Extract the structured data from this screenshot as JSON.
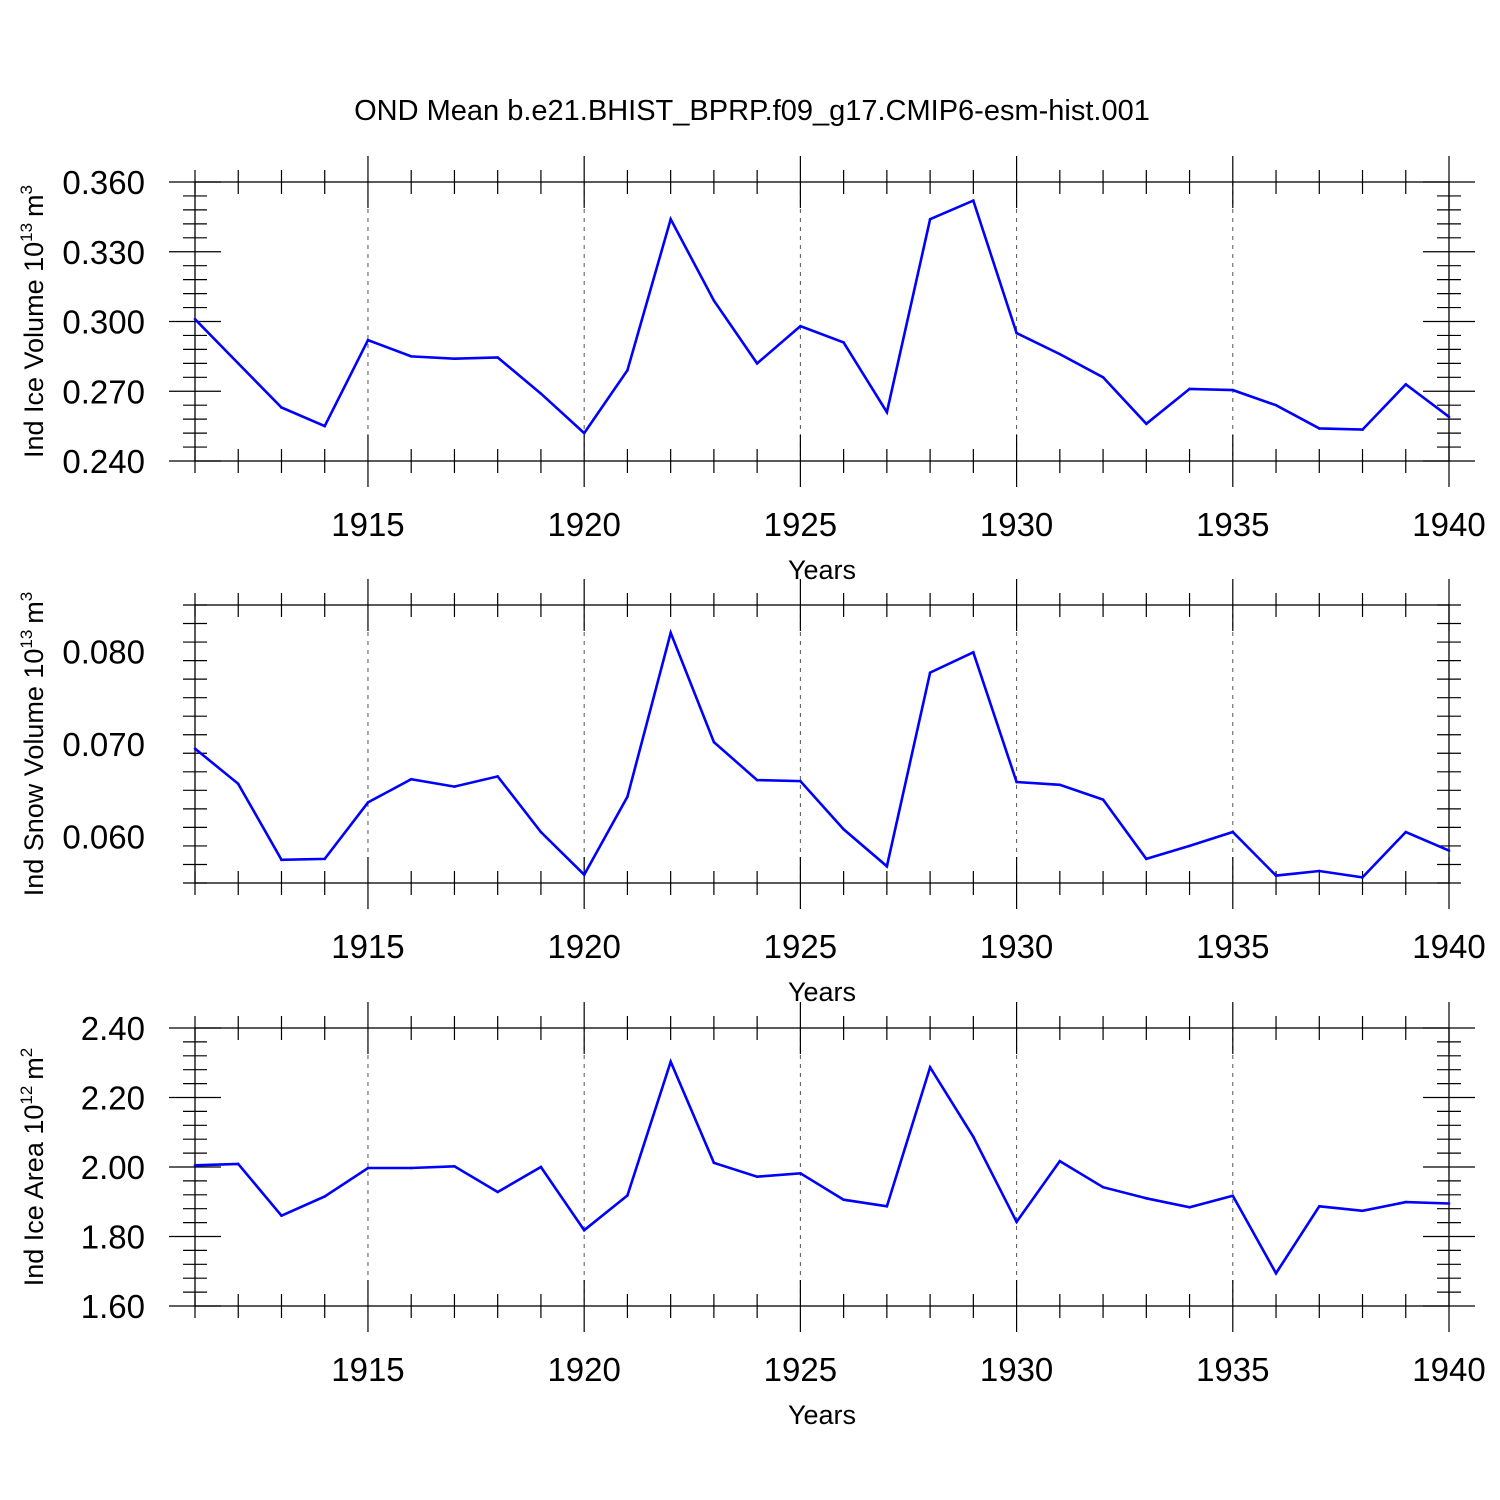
{
  "title": "OND Mean b.e21.BHIST_BPRP.f09_g17.CMIP6-esm-hist.001",
  "chart_data": [
    {
      "type": "line",
      "name": "ice-volume",
      "ylabel": "Ind Ice Volume",
      "ylabel_exp_base": "10",
      "ylabel_exp": "13",
      "ylabel_unit": "m",
      "ylabel_unit_exp": "3",
      "xlabel": "Years",
      "xlim": [
        1911,
        1940
      ],
      "ylim": [
        0.24,
        0.36
      ],
      "yticks": [
        "0.240",
        "0.270",
        "0.300",
        "0.330",
        "0.360"
      ],
      "xticks": [
        "1915",
        "1920",
        "1925",
        "1930",
        "1935",
        "1940"
      ],
      "grid": "vertical dashed at major x ticks",
      "series": [
        {
          "name": "Ind Ice Volume",
          "color": "#0000ff",
          "x": [
            1911,
            1912,
            1913,
            1914,
            1915,
            1916,
            1917,
            1918,
            1919,
            1920,
            1921,
            1922,
            1923,
            1924,
            1925,
            1926,
            1927,
            1928,
            1929,
            1930,
            1931,
            1932,
            1933,
            1934,
            1935,
            1936,
            1937,
            1938,
            1939,
            1940
          ],
          "values": [
            0.301,
            0.282,
            0.263,
            0.255,
            0.292,
            0.285,
            0.284,
            0.2845,
            0.269,
            0.252,
            0.279,
            0.344,
            0.309,
            0.282,
            0.298,
            0.291,
            0.261,
            0.344,
            0.352,
            0.295,
            0.286,
            0.276,
            0.256,
            0.271,
            0.2705,
            0.264,
            0.254,
            0.2535,
            0.273,
            0.259
          ]
        }
      ]
    },
    {
      "type": "line",
      "name": "snow-volume",
      "ylabel": "Ind Snow Volume",
      "ylabel_exp_base": "10",
      "ylabel_exp": "13",
      "ylabel_unit": "m",
      "ylabel_unit_exp": "3",
      "xlabel": "Years",
      "xlim": [
        1911,
        1940
      ],
      "ylim": [
        0.055,
        0.085
      ],
      "yticks": [
        "0.060",
        "0.070",
        "0.080"
      ],
      "xticks": [
        "1915",
        "1920",
        "1925",
        "1930",
        "1935",
        "1940"
      ],
      "grid": "vertical dashed at major x ticks",
      "series": [
        {
          "name": "Ind Snow Volume",
          "color": "#0000ff",
          "x": [
            1911,
            1912,
            1913,
            1914,
            1915,
            1916,
            1917,
            1918,
            1919,
            1920,
            1921,
            1922,
            1923,
            1924,
            1925,
            1926,
            1927,
            1928,
            1929,
            1930,
            1931,
            1932,
            1933,
            1934,
            1935,
            1936,
            1937,
            1938,
            1939,
            1940
          ],
          "values": [
            0.0695,
            0.0657,
            0.0575,
            0.0576,
            0.0637,
            0.0662,
            0.0654,
            0.0665,
            0.0605,
            0.0559,
            0.0643,
            0.082,
            0.0702,
            0.0661,
            0.066,
            0.0608,
            0.0568,
            0.0777,
            0.0799,
            0.0659,
            0.0656,
            0.064,
            0.0576,
            0.059,
            0.0605,
            0.0558,
            0.0563,
            0.0556,
            0.0605,
            0.0585
          ]
        }
      ]
    },
    {
      "type": "line",
      "name": "ice-area",
      "ylabel": "Ind Ice Area",
      "ylabel_exp_base": "10",
      "ylabel_exp": "12",
      "ylabel_unit": "m",
      "ylabel_unit_exp": "2",
      "xlabel": "Years",
      "xlim": [
        1911,
        1940
      ],
      "ylim": [
        1.6,
        2.4
      ],
      "yticks": [
        "1.60",
        "1.80",
        "2.00",
        "2.20",
        "2.40"
      ],
      "xticks": [
        "1915",
        "1920",
        "1925",
        "1930",
        "1935",
        "1940"
      ],
      "grid": "vertical dashed at major x ticks",
      "series": [
        {
          "name": "Ind Ice Area",
          "color": "#0000ff",
          "x": [
            1911,
            1912,
            1913,
            1914,
            1915,
            1916,
            1917,
            1918,
            1919,
            1920,
            1921,
            1922,
            1923,
            1924,
            1925,
            1926,
            1927,
            1928,
            1929,
            1930,
            1931,
            1932,
            1933,
            1934,
            1935,
            1936,
            1937,
            1938,
            1939,
            1940
          ],
          "values": [
            2.005,
            2.009,
            1.86,
            1.915,
            1.997,
            1.997,
            2.002,
            1.928,
            2.0,
            1.818,
            1.918,
            2.303,
            2.012,
            1.972,
            1.982,
            1.906,
            1.887,
            2.287,
            2.087,
            1.842,
            2.017,
            1.942,
            1.91,
            1.884,
            1.917,
            1.694,
            1.887,
            1.874,
            1.899,
            1.895
          ]
        }
      ]
    }
  ]
}
